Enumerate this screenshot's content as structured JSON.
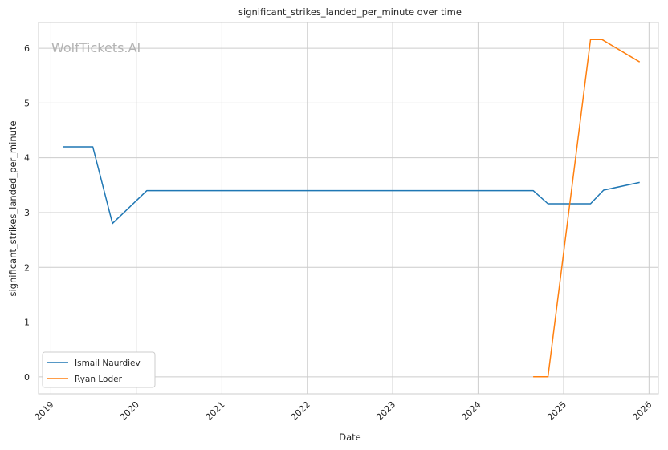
{
  "chart_data": {
    "type": "line",
    "title": "significant_strikes_landed_per_minute over time",
    "xlabel": "Date",
    "ylabel": "significant_strikes_landed_per_minute",
    "watermark": "WolfTickets.AI",
    "x_ticks": [
      "2019",
      "2020",
      "2021",
      "2022",
      "2023",
      "2024",
      "2025",
      "2026"
    ],
    "y_ticks": [
      0,
      1,
      2,
      3,
      4,
      5,
      6
    ],
    "xlim": [
      "2018-11-09",
      "2026-02-10"
    ],
    "ylim": [
      -0.31,
      6.47
    ],
    "grid": true,
    "legend_position": "lower-left",
    "series": [
      {
        "name": "Ismail Naurdiev",
        "color": "#1f77b4",
        "points": [
          {
            "x": "2019-02-23",
            "y": 4.2
          },
          {
            "x": "2019-06-29",
            "y": 4.2
          },
          {
            "x": "2019-09-21",
            "y": 2.8
          },
          {
            "x": "2020-02-15",
            "y": 3.4
          },
          {
            "x": "2024-08-24",
            "y": 3.4
          },
          {
            "x": "2024-10-26",
            "y": 3.16
          },
          {
            "x": "2025-04-26",
            "y": 3.16
          },
          {
            "x": "2025-06-21",
            "y": 3.41
          },
          {
            "x": "2025-11-22",
            "y": 3.55
          }
        ]
      },
      {
        "name": "Ryan Loder",
        "color": "#ff7f0e",
        "points": [
          {
            "x": "2024-08-24",
            "y": 0.0
          },
          {
            "x": "2024-10-26",
            "y": 0.0
          },
          {
            "x": "2025-04-26",
            "y": 6.16
          },
          {
            "x": "2025-06-14",
            "y": 6.16
          },
          {
            "x": "2025-11-22",
            "y": 5.75
          }
        ]
      }
    ]
  }
}
